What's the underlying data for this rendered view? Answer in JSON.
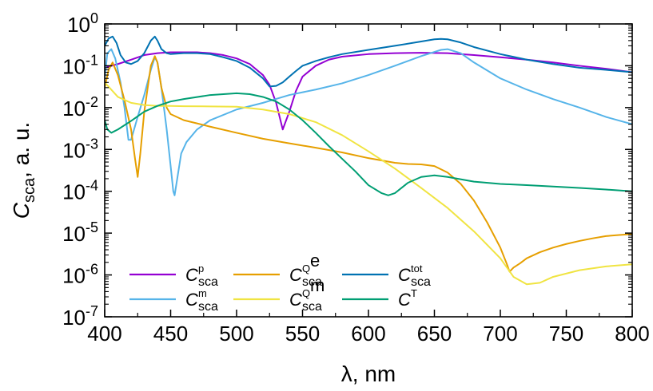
{
  "chart_data": {
    "type": "line",
    "xlabel": "λ, nm",
    "ylabel": {
      "main": "C",
      "sub": "sca",
      "rest": ", a. u."
    },
    "xlim": [
      400,
      800
    ],
    "ylim_log10": [
      -7,
      0
    ],
    "y_scale": "log",
    "grid": false,
    "legend_position": "bottom-left",
    "x_ticks": [
      400,
      450,
      500,
      550,
      600,
      650,
      700,
      750,
      800
    ],
    "y_ticks": [
      {
        "base": "10",
        "exp": "0",
        "value": 1
      },
      {
        "base": "10",
        "exp": "-1",
        "value": 0.1
      },
      {
        "base": "10",
        "exp": "-2",
        "value": 0.01
      },
      {
        "base": "10",
        "exp": "-3",
        "value": 0.001
      },
      {
        "base": "10",
        "exp": "-4",
        "value": 0.0001
      },
      {
        "base": "10",
        "exp": "-5",
        "value": 1e-05
      },
      {
        "base": "10",
        "exp": "-6",
        "value": 1e-06
      },
      {
        "base": "10",
        "exp": "-7",
        "value": 1e-07
      }
    ],
    "series": [
      {
        "key": "p",
        "name": {
          "main": "C",
          "sup": "p",
          "sub": "sca"
        },
        "color": "#9400d3",
        "x": [
          400,
          410,
          420,
          430,
          440,
          450,
          460,
          470,
          480,
          490,
          500,
          510,
          520,
          525,
          530,
          535,
          540,
          545,
          550,
          560,
          570,
          580,
          600,
          620,
          640,
          660,
          680,
          700,
          720,
          740,
          760,
          780,
          800
        ],
        "y": [
          0.09,
          0.11,
          0.14,
          0.18,
          0.2,
          0.21,
          0.21,
          0.21,
          0.2,
          0.18,
          0.15,
          0.11,
          0.06,
          0.035,
          0.013,
          0.003,
          0.008,
          0.025,
          0.055,
          0.1,
          0.14,
          0.165,
          0.19,
          0.2,
          0.205,
          0.2,
          0.18,
          0.16,
          0.14,
          0.12,
          0.1,
          0.085,
          0.07
        ]
      },
      {
        "key": "m",
        "name": {
          "main": "C",
          "sup": "m",
          "sub": "sca"
        },
        "color": "#56b4e9",
        "x": [
          400,
          402,
          405,
          408,
          412,
          415,
          418,
          420,
          425,
          430,
          435,
          438,
          440,
          443,
          447,
          450,
          452,
          453,
          455,
          458,
          462,
          470,
          480,
          500,
          520,
          540,
          560,
          580,
          600,
          620,
          640,
          655,
          660,
          670,
          680,
          700,
          720,
          740,
          760,
          780,
          800
        ],
        "y": [
          0.05,
          0.2,
          0.25,
          0.15,
          0.04,
          0.01,
          0.0017,
          0.0017,
          0.006,
          0.02,
          0.08,
          0.16,
          0.12,
          0.03,
          0.003,
          0.0004,
          0.0001,
          8e-05,
          0.0002,
          0.0008,
          0.0015,
          0.003,
          0.005,
          0.009,
          0.013,
          0.02,
          0.027,
          0.038,
          0.06,
          0.1,
          0.17,
          0.24,
          0.25,
          0.2,
          0.12,
          0.05,
          0.027,
          0.016,
          0.01,
          0.006,
          0.004
        ]
      },
      {
        "key": "Qe",
        "name": {
          "main": "C",
          "sup": "Q",
          "supsup": "e",
          "sub": "sca"
        },
        "color": "#e69f00",
        "x": [
          400,
          403,
          406,
          410,
          415,
          420,
          423,
          425,
          427,
          430,
          435,
          438,
          440,
          443,
          447,
          450,
          460,
          470,
          480,
          500,
          520,
          540,
          560,
          580,
          600,
          620,
          630,
          640,
          650,
          660,
          670,
          680,
          690,
          700,
          705,
          707,
          710,
          715,
          720,
          730,
          740,
          750,
          760,
          770,
          780,
          790,
          800
        ],
        "y": [
          0.03,
          0.08,
          0.12,
          0.06,
          0.015,
          0.003,
          0.0006,
          0.00022,
          0.0008,
          0.008,
          0.1,
          0.17,
          0.12,
          0.03,
          0.01,
          0.007,
          0.005,
          0.0042,
          0.0035,
          0.0025,
          0.0018,
          0.0014,
          0.0011,
          0.00085,
          0.00062,
          0.00048,
          0.00045,
          0.00044,
          0.0004,
          0.00028,
          0.00015,
          6e-05,
          1.8e-05,
          4.5e-06,
          1.8e-06,
          1.2e-06,
          1.5e-06,
          1.9e-06,
          2.5e-06,
          3.5e-06,
          4.5e-06,
          5.5e-06,
          6.5e-06,
          7.5e-06,
          8.5e-06,
          9e-06,
          9.5e-06
        ]
      },
      {
        "key": "Qm",
        "name": {
          "main": "C",
          "sup": "Q",
          "supsup": "m",
          "sub": "sca"
        },
        "color": "#f0e442",
        "x": [
          400,
          410,
          420,
          430,
          440,
          450,
          460,
          480,
          500,
          520,
          540,
          560,
          580,
          600,
          620,
          640,
          660,
          680,
          700,
          710,
          720,
          730,
          740,
          760,
          780,
          800
        ],
        "y": [
          0.04,
          0.018,
          0.013,
          0.0115,
          0.011,
          0.011,
          0.0108,
          0.0107,
          0.0105,
          0.009,
          0.007,
          0.0045,
          0.0022,
          0.0009,
          0.00035,
          0.00012,
          4e-05,
          1.1e-05,
          2.5e-06,
          9e-07,
          6e-07,
          6.5e-07,
          9e-07,
          1.3e-06,
          1.6e-06,
          1.8e-06
        ]
      },
      {
        "key": "tot",
        "name": {
          "main": "C",
          "sup": "tot",
          "sub": "sca"
        },
        "color": "#0072b2",
        "x": [
          400,
          403,
          406,
          409,
          412,
          416,
          420,
          425,
          430,
          435,
          438,
          440,
          443,
          447,
          450,
          460,
          470,
          480,
          490,
          500,
          510,
          520,
          525,
          530,
          535,
          540,
          545,
          550,
          560,
          570,
          580,
          600,
          620,
          640,
          650,
          655,
          660,
          670,
          680,
          700,
          720,
          740,
          760,
          780,
          800
        ],
        "y": [
          0.3,
          0.45,
          0.5,
          0.35,
          0.18,
          0.12,
          0.11,
          0.13,
          0.2,
          0.4,
          0.5,
          0.4,
          0.25,
          0.2,
          0.19,
          0.2,
          0.2,
          0.19,
          0.16,
          0.13,
          0.09,
          0.05,
          0.032,
          0.033,
          0.04,
          0.055,
          0.075,
          0.1,
          0.13,
          0.16,
          0.19,
          0.24,
          0.3,
          0.38,
          0.43,
          0.44,
          0.43,
          0.36,
          0.28,
          0.19,
          0.14,
          0.11,
          0.09,
          0.08,
          0.07
        ]
      },
      {
        "key": "T",
        "name": {
          "main": "C",
          "sup": "T",
          "sub": ""
        },
        "color": "#009e73",
        "x": [
          400,
          402,
          405,
          410,
          420,
          430,
          440,
          450,
          460,
          480,
          500,
          510,
          520,
          530,
          540,
          550,
          560,
          570,
          580,
          590,
          600,
          610,
          615,
          620,
          625,
          630,
          640,
          650,
          660,
          680,
          700,
          720,
          740,
          760,
          780,
          800
        ],
        "y": [
          0.005,
          0.003,
          0.0025,
          0.003,
          0.0048,
          0.008,
          0.011,
          0.014,
          0.016,
          0.02,
          0.022,
          0.021,
          0.018,
          0.014,
          0.009,
          0.005,
          0.0025,
          0.0012,
          0.0006,
          0.0003,
          0.00014,
          9e-05,
          8e-05,
          9e-05,
          0.00012,
          0.00016,
          0.00022,
          0.00024,
          0.00022,
          0.00017,
          0.00015,
          0.00014,
          0.00013,
          0.00012,
          0.00011,
          0.0001
        ]
      }
    ],
    "legend_order": [
      "p",
      "m",
      "Qe",
      "Qm",
      "tot",
      "T"
    ]
  }
}
